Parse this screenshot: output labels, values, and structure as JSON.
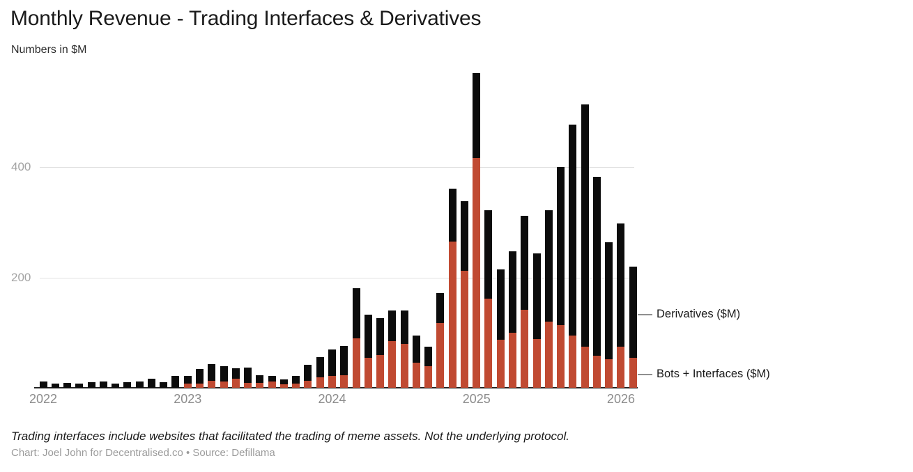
{
  "header": {
    "title": "Monthly Revenue - Trading Interfaces & Derivatives",
    "subtitle": "Numbers in $M"
  },
  "legend": {
    "derivatives_label": "Derivatives ($M)",
    "bots_label": "Bots + Interfaces ($M)"
  },
  "footer": {
    "note": "Trading interfaces include websites that facilitated the trading of meme assets. Not the underlying protocol.",
    "credit": "Chart: Joel John for Decentralised.co • Source: Defillama"
  },
  "colors": {
    "derivatives": "#0c0c0c",
    "bots": "#c04a32",
    "grid": "#e1e1e1",
    "axis": "#262626",
    "y_tick_text": "#a3a3a3",
    "x_tick_text": "#8c8c8c"
  },
  "chart_data": {
    "type": "bar",
    "stacked": true,
    "title": "Monthly Revenue - Trading Interfaces & Derivatives",
    "subtitle": "Numbers in $M",
    "unit": "$M",
    "grid": true,
    "legend_position": "right",
    "ylim": [
      0,
      580
    ],
    "y_ticks": [
      200,
      400
    ],
    "x_tick_labels": [
      "2022",
      "2023",
      "2024",
      "2025",
      "2026"
    ],
    "months": [
      "Jan 2022",
      "Feb 2022",
      "Mar 2022",
      "Apr 2022",
      "May 2022",
      "Jun 2022",
      "Jul 2022",
      "Aug 2022",
      "Sep 2022",
      "Oct 2022",
      "Nov 2022",
      "Dec 2022",
      "Jan 2023",
      "Feb 2023",
      "Mar 2023",
      "Apr 2023",
      "May 2023",
      "Jun 2023",
      "Jul 2023",
      "Aug 2023",
      "Sep 2023",
      "Oct 2023",
      "Nov 2023",
      "Dec 2023",
      "Jan 2024",
      "Feb 2024",
      "Mar 2024",
      "Apr 2024",
      "May 2024",
      "Jun 2024",
      "Jul 2024",
      "Aug 2024",
      "Sep 2024",
      "Oct 2024",
      "Nov 2024",
      "Dec 2024",
      "Jan 2025",
      "Feb 2025",
      "Mar 2025",
      "Apr 2025",
      "May 2025",
      "Jun 2025",
      "Jul 2025",
      "Aug 2025",
      "Sep 2025",
      "Oct 2025",
      "Nov 2025",
      "Dec 2025",
      "Jan 2026",
      "Feb 2026"
    ],
    "series": [
      {
        "name": "Bots + Interfaces ($M)",
        "color": "#c04a32",
        "values": [
          0,
          0,
          0,
          0,
          0,
          0,
          0,
          0,
          0,
          0,
          0,
          0,
          8,
          8,
          13,
          11,
          16,
          9,
          9,
          12,
          6,
          8,
          13,
          19,
          21,
          23,
          89,
          54,
          59,
          84,
          80,
          46,
          39,
          117,
          265,
          212,
          416,
          161,
          87,
          100,
          141,
          88,
          120,
          114,
          95,
          74,
          58,
          52,
          74,
          54
        ]
      },
      {
        "name": "Derivatives ($M)",
        "color": "#0c0c0c",
        "values": [
          11,
          8,
          9,
          8,
          10,
          11,
          7,
          10,
          12,
          16,
          10,
          21,
          14,
          26,
          30,
          28,
          19,
          27,
          14,
          10,
          9,
          14,
          29,
          37,
          48,
          53,
          92,
          78,
          67,
          56,
          60,
          49,
          36,
          55,
          96,
          126,
          155,
          161,
          128,
          147,
          171,
          155,
          202,
          286,
          382,
          439,
          324,
          212,
          224,
          166
        ]
      }
    ]
  }
}
